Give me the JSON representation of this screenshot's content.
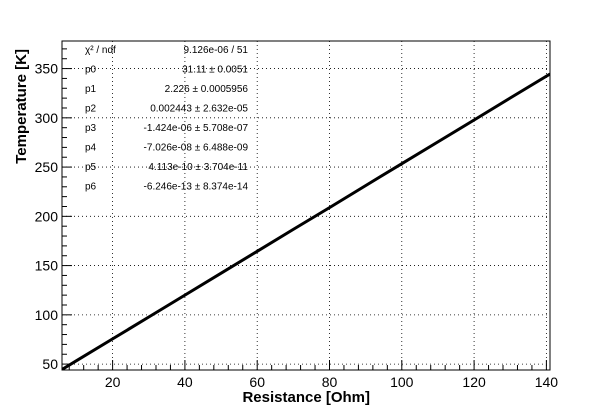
{
  "chart_data": {
    "type": "line",
    "xlabel": "Resistance [Ohm]",
    "ylabel": "Temperature [K]",
    "xlim": [
      6,
      141
    ],
    "ylim": [
      44,
      378
    ],
    "xticks": [
      20,
      40,
      60,
      80,
      100,
      120,
      140
    ],
    "yticks": [
      50,
      100,
      150,
      200,
      250,
      300,
      350
    ],
    "grid": true,
    "series": [
      {
        "x": [
          6,
          10,
          20,
          30,
          40,
          50,
          60,
          70,
          80,
          90,
          100,
          110,
          120,
          130,
          141
        ],
        "y": [
          44.5,
          53.4,
          75.6,
          97.8,
          120.0,
          142.3,
          164.5,
          186.7,
          208.9,
          231.2,
          253.4,
          275.6,
          297.8,
          320.1,
          344.5
        ]
      }
    ],
    "stats_box": [
      {
        "label": "χ² / ndf",
        "value": "9.126e-06 / 51"
      },
      {
        "label": "p0",
        "value": "31.11 ± 0.0051"
      },
      {
        "label": "p1",
        "value": "2.226 ± 0.0005956"
      },
      {
        "label": "p2",
        "value": "0.002443 ± 2.632e-05"
      },
      {
        "label": "p3",
        "value": "-1.424e-06 ± 5.708e-07"
      },
      {
        "label": "p4",
        "value": "-7.026e-08 ± 6.488e-09"
      },
      {
        "label": "p5",
        "value": "4.113e-10 ± 3.704e-11"
      },
      {
        "label": "p6",
        "value": "-6.246e-13 ± 8.374e-14"
      }
    ]
  }
}
